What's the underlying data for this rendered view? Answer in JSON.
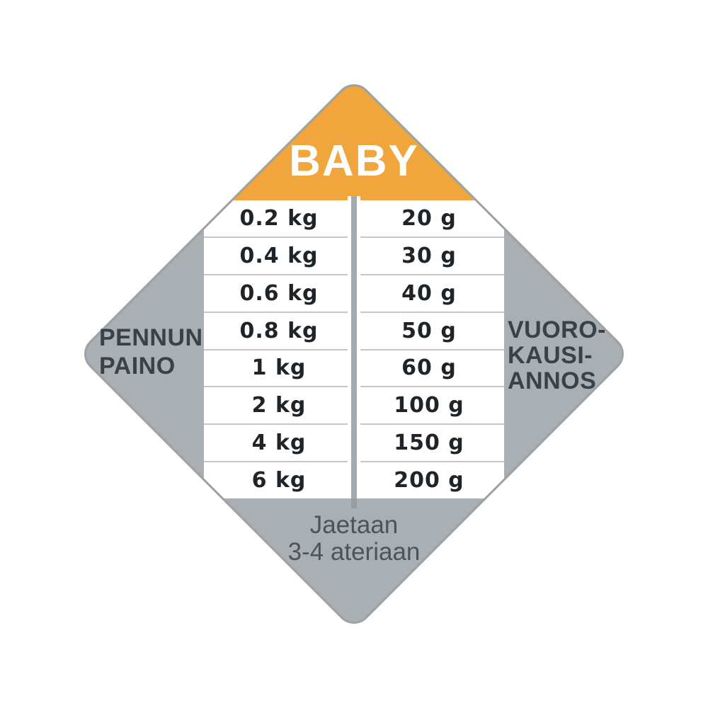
{
  "badge": {
    "label": "BABY"
  },
  "left_label": {
    "line1": "PENNUN",
    "line2": "PAINO"
  },
  "right_label": {
    "line1": "VUORO-",
    "line2": "KAUSI-",
    "line3": "ANNOS"
  },
  "note": {
    "line1": "Jaetaan",
    "line2": "3-4 ateriaan"
  },
  "table": {
    "rows": [
      {
        "weight": "0.2 kg",
        "portion": "20 g"
      },
      {
        "weight": "0.4 kg",
        "portion": "30 g"
      },
      {
        "weight": "0.6 kg",
        "portion": "40 g"
      },
      {
        "weight": "0.8 kg",
        "portion": "50 g"
      },
      {
        "weight": "1 kg",
        "portion": "60 g"
      },
      {
        "weight": "2 kg",
        "portion": "100 g"
      },
      {
        "weight": "4 kg",
        "portion": "150 g"
      },
      {
        "weight": "6 kg",
        "portion": "200 g"
      }
    ]
  },
  "colors": {
    "accent_orange": "#F0A63C",
    "diamond_gray": "#A9AFB2",
    "diamond_border": "#9CA2A5",
    "row_line": "#C3C7C9",
    "table_text": "#1F2429",
    "label_text": "#39414A",
    "note_text": "#4C545B"
  }
}
